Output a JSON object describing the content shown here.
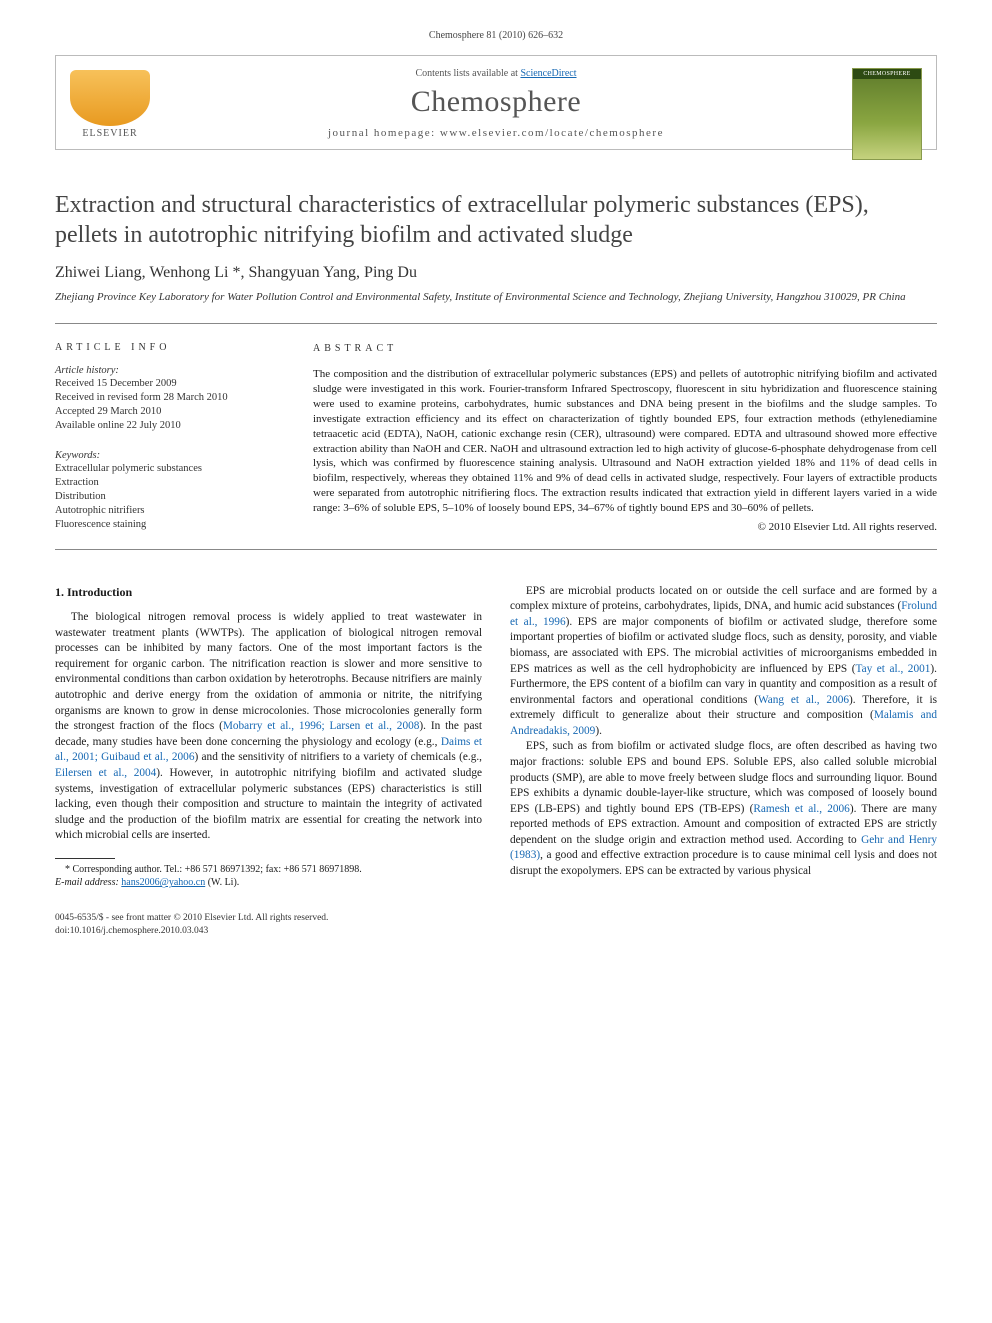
{
  "running_head": "Chemosphere 81 (2010) 626–632",
  "header": {
    "contents_prefix": "Contents lists available at ",
    "contents_link": "ScienceDirect",
    "journal": "Chemosphere",
    "homepage_prefix": "journal homepage: ",
    "homepage_url": "www.elsevier.com/locate/chemosphere",
    "publisher_brand": "ELSEVIER",
    "cover_label": "CHEMOSPHERE"
  },
  "article": {
    "title": "Extraction and structural characteristics of extracellular polymeric substances (EPS), pellets in autotrophic nitrifying biofilm and activated sludge",
    "authors": "Zhiwei Liang, Wenhong Li *, Shangyuan Yang, Ping Du",
    "affiliation": "Zhejiang Province Key Laboratory for Water Pollution Control and Environmental Safety, Institute of Environmental Science and Technology, Zhejiang University, Hangzhou 310029, PR China"
  },
  "info": {
    "header": "article info",
    "history_header": "Article history:",
    "history": [
      "Received 15 December 2009",
      "Received in revised form 28 March 2010",
      "Accepted 29 March 2010",
      "Available online 22 July 2010"
    ],
    "keywords_header": "Keywords:",
    "keywords": [
      "Extracellular polymeric substances",
      "Extraction",
      "Distribution",
      "Autotrophic nitrifiers",
      "Fluorescence staining"
    ]
  },
  "abstract": {
    "header": "abstract",
    "text": "The composition and the distribution of extracellular polymeric substances (EPS) and pellets of autotrophic nitrifying biofilm and activated sludge were investigated in this work. Fourier-transform Infrared Spectroscopy, fluorescent in situ hybridization and fluorescence staining were used to examine proteins, carbohydrates, humic substances and DNA being present in the biofilms and the sludge samples. To investigate extraction efficiency and its effect on characterization of tightly bounded EPS, four extraction methods (ethylenediamine tetraacetic acid (EDTA), NaOH, cationic exchange resin (CER), ultrasound) were compared. EDTA and ultrasound showed more effective extraction ability than NaOH and CER. NaOH and ultrasound extraction led to high activity of glucose-6-phosphate dehydrogenase from cell lysis, which was confirmed by fluorescence staining analysis. Ultrasound and NaOH extraction yielded 18% and 11% of dead cells in biofilm, respectively, whereas they obtained 11% and 9% of dead cells in activated sludge, respectively. Four layers of extractible products were separated from autotrophic nitrifiering flocs. The extraction results indicated that extraction yield in different layers varied in a wide range: 3–6% of soluble EPS, 5–10% of loosely bound EPS, 34–67% of tightly bound EPS and 30–60% of pellets.",
    "copyright": "© 2010 Elsevier Ltd. All rights reserved."
  },
  "section1": {
    "heading": "1. Introduction",
    "p1a": "The biological nitrogen removal process is widely applied to treat wastewater in wastewater treatment plants (WWTPs). The application of biological nitrogen removal processes can be inhibited by many factors. One of the most important factors is the requirement for organic carbon. The nitrification reaction is slower and more sensitive to environmental conditions than carbon oxidation by heterotrophs. Because nitrifiers are mainly autotrophic and derive energy from the oxidation of ammonia or nitrite, the nitrifying organisms are known to grow in dense microcolonies. Those microcolonies generally form the strongest fraction of the flocs (",
    "p1_ref1": "Mobarry et al., 1996; Larsen et al., 2008",
    "p1b": "). In the past decade, many studies have been done concerning the physiology and ecology (e.g., ",
    "p1_ref2": "Daims et al., 2001; Guibaud et al., 2006",
    "p1c": ") and the sensitivity of nitrifiers to a variety of chemicals (e.g., ",
    "p1_ref3": "Eilersen et al., 2004",
    "p1d": "). However, in autotrophic nitrifying biofilm and activated sludge systems, investigation of extracellular polymeric substances (EPS) characteristics is still lacking, even though their composition and structure to maintain the integrity of activated sludge and the production of the biofilm matrix are essential for creating the network into which microbial cells are inserted.",
    "p2a": "EPS are microbial products located on or outside the cell surface and are formed by a complex mixture of proteins, carbohydrates, lipids, DNA, and humic acid substances (",
    "p2_ref1": "Frolund et al., 1996",
    "p2b": "). EPS are major components of biofilm or activated sludge, therefore some important properties of biofilm or activated sludge flocs, such as density, porosity, and viable biomass, are associated with EPS. The microbial activities of microorganisms embedded in EPS matrices as well as the cell hydrophobicity are influenced by EPS (",
    "p2_ref2": "Tay et al., 2001",
    "p2c": "). Furthermore, the EPS content of a biofilm can vary in quantity and composition as a result of environmental factors and operational conditions (",
    "p2_ref3": "Wang et al., 2006",
    "p2d": "). Therefore, it is extremely difficult to generalize about their structure and composition (",
    "p2_ref4": "Malamis and Andreadakis, 2009",
    "p2e": ").",
    "p3a": "EPS, such as from biofilm or activated sludge flocs, are often described as having two major fractions: soluble EPS and bound EPS. Soluble EPS, also called soluble microbial products (SMP), are able to move freely between sludge flocs and surrounding liquor. Bound EPS exhibits a dynamic double-layer-like structure, which was composed of loosely bound EPS (LB-EPS) and tightly bound EPS (TB-EPS) (",
    "p3_ref1": "Ramesh et al., 2006",
    "p3b": "). There are many reported methods of EPS extraction. Amount and composition of extracted EPS are strictly dependent on the sludge origin and extraction method used. According to ",
    "p3_ref2": "Gehr and Henry (1983)",
    "p3c": ", a good and effective extraction procedure is to cause minimal cell lysis and does not disrupt the exopolymers. EPS can be extracted by various physical"
  },
  "corresponding": {
    "line1": "* Corresponding author. Tel.: +86 571 86971392; fax: +86 571 86971898.",
    "email_label": "E-mail address:",
    "email": "hans2006@yahoo.cn",
    "email_suffix": " (W. Li)."
  },
  "footer": {
    "line1": "0045-6535/$ - see front matter © 2010 Elsevier Ltd. All rights reserved.",
    "line2": "doi:10.1016/j.chemosphere.2010.03.043"
  }
}
